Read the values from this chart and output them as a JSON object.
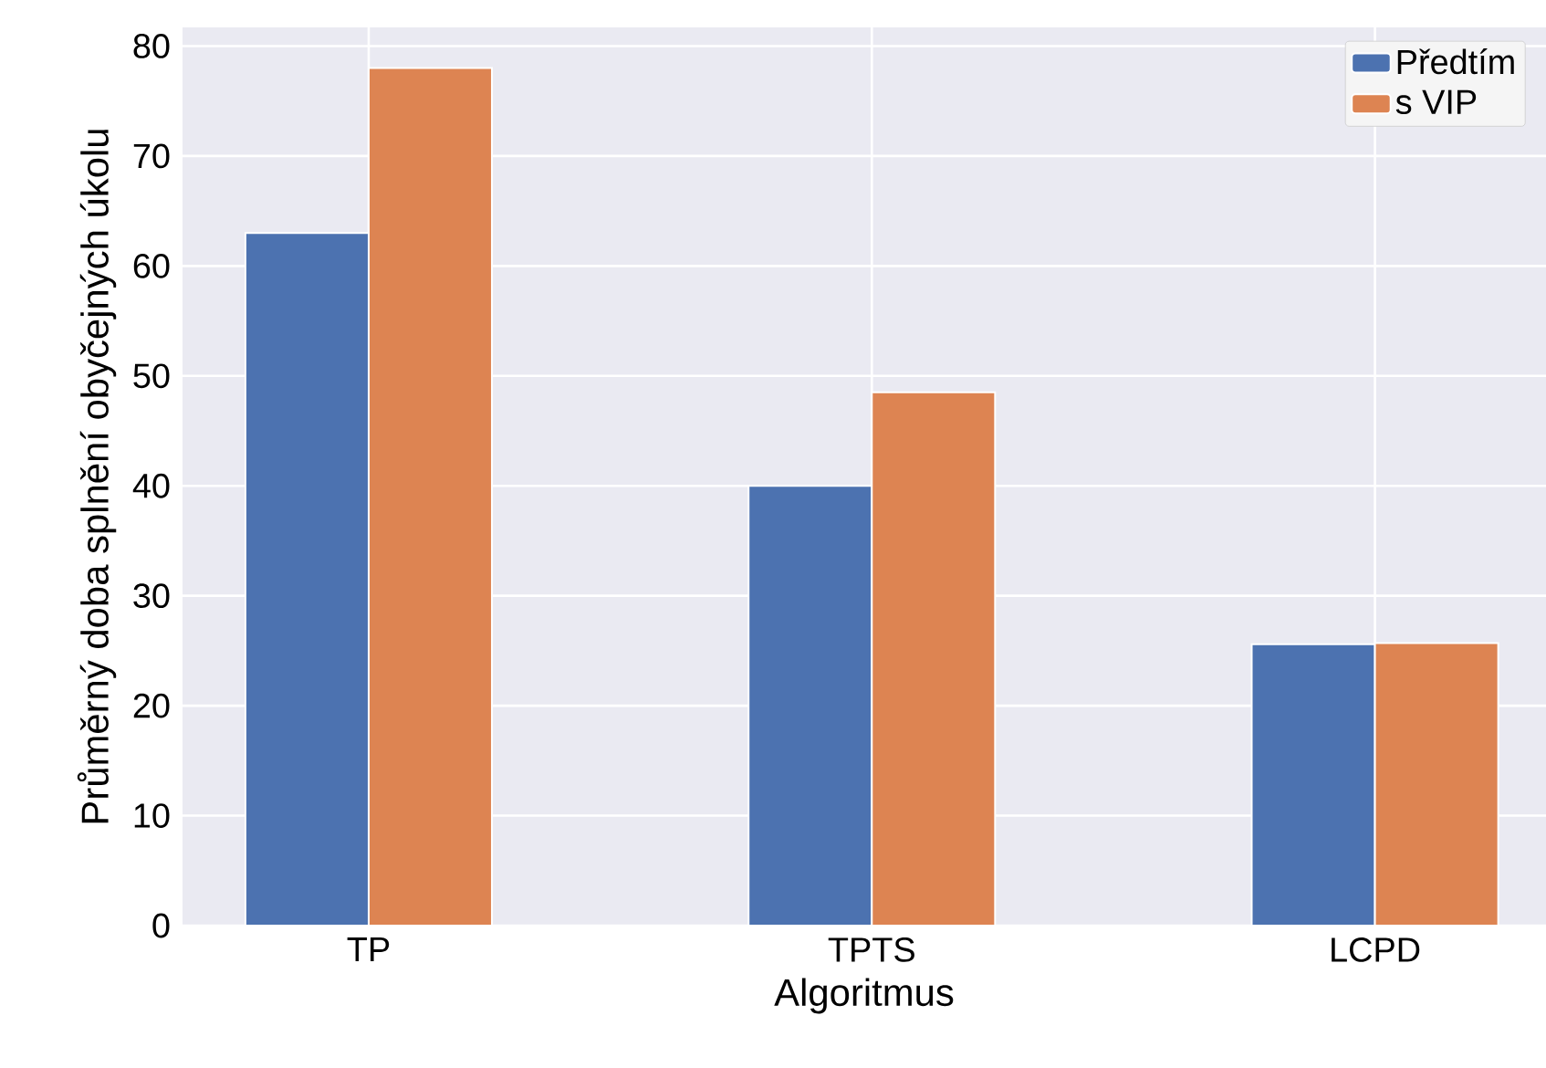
{
  "chart_data": {
    "type": "bar",
    "xlabel": "Algoritmus",
    "ylabel": "Průměrný doba splnění obyčejných úkolu",
    "categories": [
      "TP",
      "TPTS",
      "LCPD"
    ],
    "series": [
      {
        "name": "Předtím",
        "color": "#4c72b0",
        "values": [
          63,
          40,
          25.6
        ]
      },
      {
        "name": "s VIP",
        "color": "#dd8452",
        "values": [
          78,
          48.5,
          25.7
        ]
      }
    ],
    "ylim": [
      0,
      81.7
    ],
    "yticks": [
      0,
      10,
      20,
      30,
      40,
      50,
      60,
      70,
      80
    ],
    "grid": true,
    "legend": "top right"
  }
}
